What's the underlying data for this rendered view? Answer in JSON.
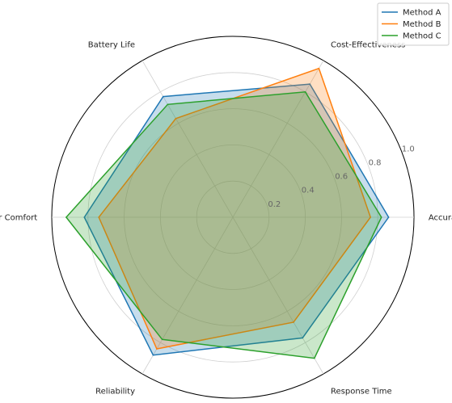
{
  "chart_data": {
    "type": "radar",
    "categories": [
      "Accuracy",
      "Cost-Effectiveness",
      "Battery Life",
      "User Comfort",
      "Reliability",
      "Response Time"
    ],
    "series": [
      {
        "name": "Method A",
        "color": "#1f77b4",
        "values": [
          0.86,
          0.85,
          0.77,
          0.82,
          0.88,
          0.77
        ]
      },
      {
        "name": "Method B",
        "color": "#ff7f0e",
        "values": [
          0.76,
          0.95,
          0.63,
          0.74,
          0.84,
          0.67
        ]
      },
      {
        "name": "Method C",
        "color": "#2ca02c",
        "values": [
          0.82,
          0.8,
          0.72,
          0.92,
          0.78,
          0.9
        ]
      }
    ],
    "rticks": [
      0.2,
      0.4,
      0.6,
      0.8,
      1.0
    ],
    "rtick_labels": [
      "0.2",
      "0.4",
      "0.6",
      "0.8",
      "1.0"
    ],
    "rlim": [
      0,
      1
    ],
    "grid": true,
    "legend_position": "top-right"
  }
}
